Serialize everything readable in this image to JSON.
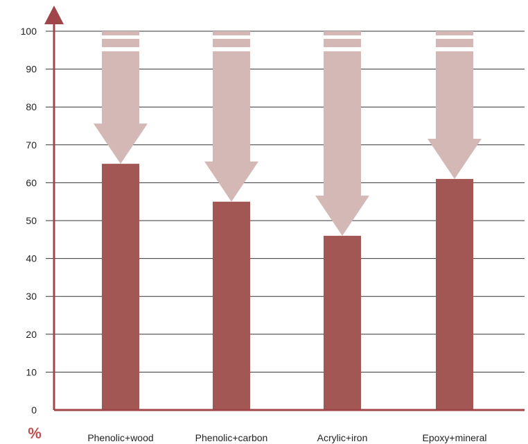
{
  "chart_data": {
    "type": "bar",
    "title": "",
    "xlabel": "",
    "ylabel": "%",
    "ylim": [
      0,
      100
    ],
    "yticks": [
      0,
      10,
      20,
      30,
      40,
      50,
      60,
      70,
      80,
      90,
      100
    ],
    "grid": true,
    "categories": [
      "Phenolic+wood",
      "Phenolic+carbon",
      "Acrylic+iron",
      "Epoxy+mineral"
    ],
    "values": [
      65,
      55,
      46,
      61
    ],
    "reduction_arrows_from": 100
  },
  "colors": {
    "bar": "#a25755",
    "arrow": "#d3b8b5",
    "axis": "#a0464a",
    "grid": "#333333",
    "unit_label": "#c0504d"
  }
}
